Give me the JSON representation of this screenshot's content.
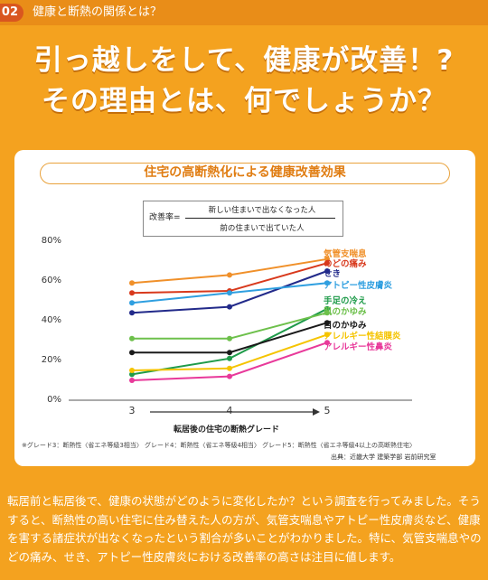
{
  "section": {
    "number": "02",
    "title": "健康と断熱の関係とは？"
  },
  "headline": {
    "line1": "引っ越しをして、健康が改善！?",
    "line2": "その理由とは、何でしょうか？"
  },
  "colors": {
    "background": "#f4a21f",
    "accent": "#e07d12",
    "card": "#ffffff"
  },
  "chart_data": {
    "type": "line",
    "title": "住宅の高断熱化による健康改善効果",
    "formula": {
      "label": "改善率=",
      "numerator": "新しい住まいで出なくなった人",
      "denominator": "前の住まいで出ていた人"
    },
    "x": [
      "3",
      "4",
      "5"
    ],
    "xlabel": "転居後の住宅の断熱グレード",
    "ylabel": "",
    "y_ticks": [
      "80%",
      "60%",
      "40%",
      "20%",
      "0%"
    ],
    "ylim": [
      0,
      80
    ],
    "series": [
      {
        "name": "気管支喘息",
        "color": "#f0902a",
        "values": [
          59,
          63,
          71
        ]
      },
      {
        "name": "のどの痛み",
        "color": "#d8391c",
        "values": [
          54,
          55,
          69
        ]
      },
      {
        "name": "せき",
        "color": "#222a8a",
        "values": [
          44,
          47,
          65
        ]
      },
      {
        "name": "アトピー性皮膚炎",
        "color": "#2f9fe0",
        "values": [
          49,
          54,
          59
        ]
      },
      {
        "name": "手足の冷え",
        "color": "#1f9b4a",
        "values": [
          13,
          21,
          46
        ]
      },
      {
        "name": "肌のかゆみ",
        "color": "#6dc04b",
        "values": [
          31,
          31,
          44
        ]
      },
      {
        "name": "目のかゆみ",
        "color": "#1a1a1a",
        "values": [
          24,
          24,
          39
        ]
      },
      {
        "name": "アレルギー性結膜炎",
        "color": "#f5c400",
        "values": [
          15,
          16,
          33
        ]
      },
      {
        "name": "アレルギー性鼻炎",
        "color": "#e8399a",
        "values": [
          10,
          12,
          29
        ]
      }
    ],
    "labels": [
      {
        "text": "気管支喘息",
        "color": "#f0902a"
      },
      {
        "text": "のどの痛み",
        "color": "#d8391c"
      },
      {
        "text": "せき",
        "color": "#222a8a"
      },
      {
        "text": "アトピー性皮膚炎",
        "color": "#2f9fe0"
      },
      {
        "text": "手足の冷え",
        "color": "#1f9b4a"
      },
      {
        "text": "肌のかゆみ",
        "color": "#6dc04b"
      },
      {
        "text": "目のかゆみ",
        "color": "#1a1a1a"
      },
      {
        "text": "アレルギー性結膜炎",
        "color": "#f5c400"
      },
      {
        "text": "アレルギー性鼻炎",
        "color": "#e8399a"
      }
    ],
    "grid": false,
    "legend": "right",
    "footnote": "※グレード3：断熱性〈省エネ等級3相当〉 グレード4：断熱性〈省エネ等級4相当〉 グレード5：断熱性〈省エネ等級4以上の高断熱住宅〉",
    "source": "出典：近畿大学 建築学部 岩前研究室"
  },
  "body": {
    "paragraph": "転居前と転居後で、健康の状態がどのように変化したか？という調査を行ってみました。そうすると、断熱性の高い住宅に住み替えた人の方が、気管支喘息やアトピー性皮膚炎など、健康を害する諸症状が出なくなったという割合が多いことがわかりました。特に、気管支喘息やのどの痛み、せき、アトピー性皮膚炎における改善率の高さは注目に値します。"
  }
}
